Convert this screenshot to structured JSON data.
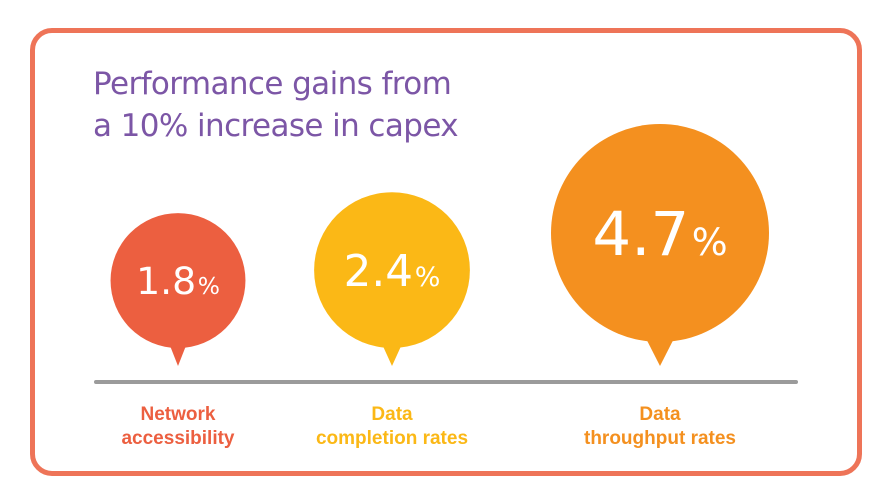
{
  "title_lines": [
    "Performance gains from",
    "a 10% increase in capex"
  ],
  "colors": {
    "frame": "#ee7458",
    "title": "#7c56a6",
    "baseline": "#9b9b9b"
  },
  "chart_data": {
    "type": "bubble",
    "title": "Performance gains from a 10% increase in capex",
    "unit": "%",
    "categories": [
      [
        "Network",
        "accessibility"
      ],
      [
        "Data",
        "completion rates"
      ],
      [
        "Data",
        "throughput rates"
      ]
    ],
    "values": [
      1.8,
      2.4,
      4.7
    ],
    "value_labels": [
      "1.8",
      "2.4",
      "4.7"
    ],
    "colors": [
      "#ec5f40",
      "#fbb816",
      "#f4901f"
    ]
  }
}
